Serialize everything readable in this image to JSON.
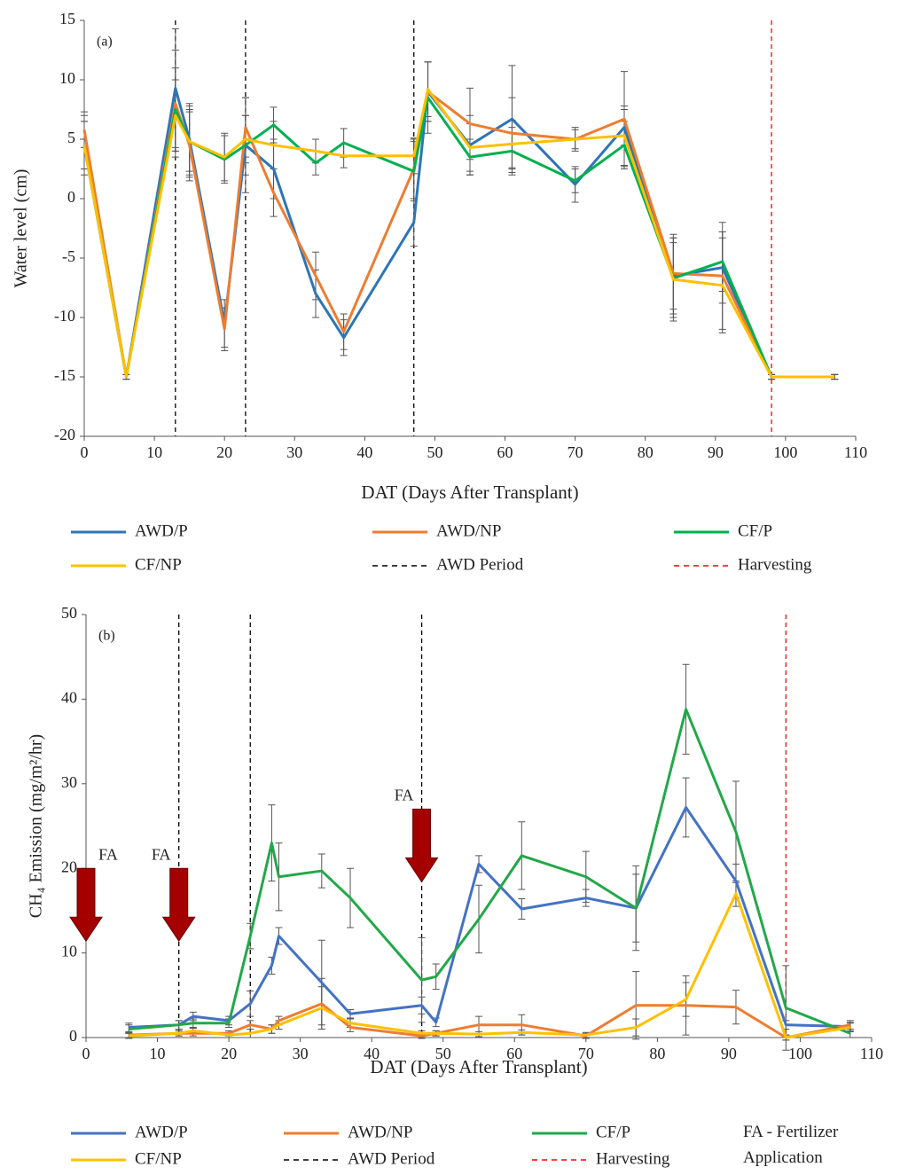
{
  "chart_data": [
    {
      "type": "line",
      "panel_label": "(a)",
      "x_label": "DAT (Days After Transplant)",
      "y_label": "Water level (cm)",
      "x": [
        0,
        6,
        13,
        15,
        20,
        23,
        27,
        33,
        37,
        47,
        49,
        55,
        61,
        70,
        77,
        84,
        91,
        98,
        107
      ],
      "xlim": [
        0,
        110
      ],
      "xticks": [
        0,
        10,
        20,
        30,
        40,
        50,
        60,
        70,
        80,
        90,
        100,
        110
      ],
      "ylim": [
        -20,
        15
      ],
      "yticks": [
        -20,
        -15,
        -10,
        -5,
        0,
        5,
        10,
        15
      ],
      "grid": false,
      "legend": "bottom",
      "series": [
        {
          "name": "AWD/P",
          "color": "#2e75b6",
          "values": [
            4.5,
            -15,
            9.3,
            5,
            -10.5,
            4.5,
            2.5,
            -8,
            -11.7,
            -2,
            9,
            4.5,
            6.7,
            1.2,
            6,
            -6.5,
            -5.8,
            -15,
            -15
          ],
          "errors": [
            2.5,
            0.2,
            5,
            3,
            2,
            4,
            2.5,
            2,
            1.5,
            2,
            2.5,
            2.5,
            4.5,
            1.5,
            1.5,
            3.5,
            3,
            0.2,
            0.2
          ]
        },
        {
          "name": "AWD/NP",
          "color": "#ed7d31",
          "values": [
            5.8,
            -15,
            8,
            4.5,
            -11,
            6,
            0.5,
            -6.5,
            -11.2,
            2.5,
            9,
            6.3,
            5.5,
            5,
            6.7,
            -6.3,
            -6.5,
            -15,
            -15
          ],
          "errors": [
            1.5,
            0.2,
            4.5,
            3,
            1.8,
            2.5,
            2,
            2,
            1.5,
            2.5,
            2.5,
            3,
            3,
            0.8,
            4,
            3,
            4.5,
            0.2,
            0.2
          ]
        },
        {
          "name": "CF/P",
          "color": "#00b050",
          "values": [
            4.5,
            -15,
            7.5,
            4.8,
            3.3,
            4.5,
            6.2,
            3,
            4.7,
            2.3,
            8.5,
            3.5,
            4,
            1.5,
            4.5,
            -6.7,
            -5.3,
            -15,
            -15
          ],
          "errors": [
            2,
            0.2,
            3.5,
            3,
            2,
            2.5,
            1.5,
            1,
            1.2,
            2.5,
            3,
            1.5,
            2,
            1,
            2,
            3,
            2.5,
            0.2,
            0.2
          ]
        },
        {
          "name": "CF/NP",
          "color": "#ffc000",
          "values": [
            4.5,
            -15,
            7,
            4.8,
            3.5,
            5,
            4.5,
            4,
            3.6,
            3.6,
            9.2,
            4.3,
            4.6,
            5,
            5.3,
            -6.8,
            -7.3,
            -15,
            -15
          ],
          "errors": [
            2,
            0.2,
            3,
            2.5,
            2,
            2,
            2,
            1,
            1,
            1.5,
            2.3,
            2,
            2,
            1,
            2.5,
            3.5,
            4,
            0.2,
            0.2
          ]
        }
      ],
      "reference_lines": [
        {
          "name": "AWD Period",
          "color": "#000000",
          "x": [
            13,
            23,
            47
          ]
        },
        {
          "name": "Harvesting",
          "color": "#ff0000",
          "x": [
            98
          ]
        }
      ]
    },
    {
      "type": "line",
      "panel_label": "(b)",
      "x_label": "DAT (Days After Transplant)",
      "y_label": "CH₄ Emission (mg/m²/hr)",
      "x": [
        6,
        13,
        15,
        20,
        23,
        26,
        27,
        33,
        37,
        47,
        49,
        55,
        61,
        70,
        77,
        84,
        91,
        98,
        107
      ],
      "xlim": [
        0,
        110
      ],
      "xticks": [
        0,
        10,
        20,
        30,
        40,
        50,
        60,
        70,
        80,
        90,
        100,
        110
      ],
      "ylim": [
        0,
        50
      ],
      "yticks": [
        0,
        10,
        20,
        30,
        40,
        50
      ],
      "grid": false,
      "legend": "bottom",
      "series": [
        {
          "name": "AWD/P",
          "color": "#4472c4",
          "values": [
            1.2,
            1.5,
            2.5,
            2,
            4,
            8.5,
            12,
            6.5,
            2.8,
            3.8,
            1.8,
            20.5,
            15.2,
            16.5,
            15.3,
            27.2,
            18.5,
            1.5,
            1.3
          ],
          "errors": [
            0.5,
            0.5,
            0.5,
            0.5,
            1.5,
            1,
            1,
            5,
            0.5,
            1,
            0.5,
            1,
            1.2,
            1,
            4,
            3.5,
            2,
            0.5,
            0.5
          ]
        },
        {
          "name": "AWD/NP",
          "color": "#ed7d31",
          "values": [
            0.3,
            0.5,
            0.5,
            0.5,
            1.5,
            1,
            2,
            4,
            1.2,
            0.2,
            0.5,
            1.5,
            1.5,
            0.2,
            3.8,
            3.8,
            3.6,
            0,
            1.5
          ],
          "errors": [
            0.3,
            0.3,
            0.3,
            0.3,
            0.5,
            0.5,
            0.5,
            3,
            0.5,
            0.3,
            0.3,
            1,
            1.2,
            0.3,
            4,
            3.5,
            2,
            0.3,
            0.5
          ]
        },
        {
          "name": "CF/P",
          "color": "#22a849",
          "values": [
            1,
            1.5,
            1.7,
            1.7,
            12,
            23,
            19,
            19.7,
            16.5,
            6.8,
            7.2,
            14,
            21.5,
            19,
            15.3,
            38.8,
            24.3,
            3.5,
            0.5
          ],
          "errors": [
            0.5,
            0.5,
            0.5,
            0.5,
            1.5,
            4.5,
            4,
            2,
            3.5,
            5,
            1.5,
            4,
            4,
            3,
            5,
            5.3,
            6,
            5,
            0.5
          ]
        },
        {
          "name": "CF/NP",
          "color": "#ffc000",
          "values": [
            0.2,
            0.5,
            0.8,
            0.3,
            0.5,
            1,
            1.5,
            3.5,
            1.7,
            0.5,
            0.5,
            0.4,
            0.6,
            0.3,
            1.2,
            4.5,
            17,
            0,
            1.2
          ],
          "errors": [
            0.3,
            0.3,
            0.3,
            0.3,
            0.5,
            0.5,
            0.5,
            2.5,
            0.5,
            0.3,
            0.3,
            0.3,
            0.3,
            0.3,
            1,
            2,
            1.5,
            0.3,
            0.5
          ]
        }
      ],
      "reference_lines": [
        {
          "name": "AWD Period",
          "color": "#000000",
          "x": [
            13,
            23,
            47
          ]
        },
        {
          "name": "Harvesting",
          "color": "#ff0000",
          "x": [
            98
          ]
        }
      ],
      "annotations": [
        {
          "text": "FA",
          "x": 0,
          "y": 20
        },
        {
          "text": "FA",
          "x": 13,
          "y": 20
        },
        {
          "text": "FA",
          "x": 47,
          "y": 27
        }
      ],
      "note": "FA - Fertilizer Application"
    }
  ]
}
